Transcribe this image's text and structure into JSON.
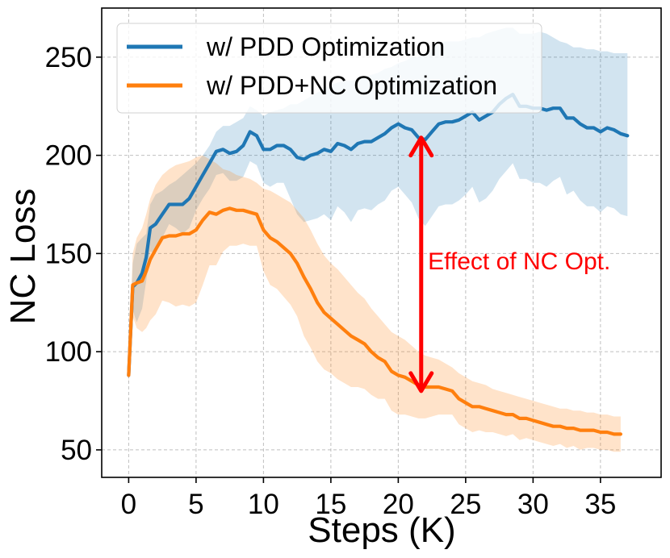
{
  "chart_data": {
    "type": "line",
    "xlabel": "Steps (K)",
    "ylabel": "NC Loss",
    "xlim": [
      -2,
      39.5
    ],
    "ylim": [
      36,
      275
    ],
    "xticks": [
      0,
      5,
      10,
      15,
      20,
      25,
      30,
      35
    ],
    "yticks": [
      50,
      100,
      150,
      200,
      250
    ],
    "xtick_labels": [
      "0",
      "5",
      "10",
      "15",
      "20",
      "25",
      "30",
      "35"
    ],
    "ytick_labels": [
      "50",
      "100",
      "150",
      "200",
      "250"
    ],
    "grid": true,
    "legend_position": "top-left",
    "series": [
      {
        "name": "w/ PDD Optimization",
        "color": "#1f77b4",
        "x": [
          0,
          0.3,
          0.6,
          1.0,
          1.3,
          1.6,
          2.0,
          2.5,
          3.0,
          3.5,
          4.0,
          4.5,
          5.0,
          5.5,
          6.0,
          6.5,
          7.0,
          7.5,
          8.0,
          8.5,
          9.0,
          9.5,
          10.0,
          10.5,
          11.0,
          11.5,
          12.0,
          12.5,
          13.0,
          13.5,
          14.0,
          14.5,
          15.0,
          15.5,
          16.0,
          16.5,
          17.0,
          17.5,
          18.0,
          18.5,
          19.0,
          19.5,
          20.0,
          20.5,
          21.0,
          21.5,
          22.0,
          22.5,
          23.0,
          23.5,
          24.0,
          24.5,
          25.0,
          25.5,
          26.0,
          26.5,
          27.0,
          27.5,
          28.0,
          28.5,
          29.0,
          29.5,
          30.0,
          30.5,
          31.0,
          31.5,
          32.0,
          32.5,
          33.0,
          33.5,
          34.0,
          34.5,
          35.0,
          35.5,
          36.0,
          36.5,
          37.0
        ],
        "y": [
          88,
          133,
          135,
          140,
          148,
          163,
          165,
          170,
          175,
          175,
          175,
          178,
          184,
          190,
          196,
          202,
          203,
          201,
          202,
          205,
          212,
          210,
          203,
          203,
          205,
          205,
          203,
          199,
          198,
          200,
          201,
          203,
          202,
          206,
          205,
          203,
          206,
          207,
          207,
          209,
          211,
          214,
          216,
          214,
          213,
          209,
          208,
          212,
          216,
          217,
          217,
          218,
          220,
          222,
          218,
          220,
          222,
          226,
          229,
          231,
          225,
          225,
          224,
          224,
          223,
          224,
          224,
          219,
          219,
          216,
          214,
          214,
          212,
          214,
          213,
          211,
          210
        ],
        "band_upper": [
          92,
          145,
          155,
          158,
          160,
          175,
          180,
          182,
          185,
          187,
          190,
          193,
          196,
          200,
          205,
          212,
          215,
          215,
          217,
          219,
          225,
          223,
          220,
          222,
          223,
          224,
          226,
          226,
          228,
          230,
          232,
          234,
          236,
          237,
          238,
          238,
          239,
          240,
          241,
          242,
          244,
          245,
          247,
          248,
          250,
          250,
          252,
          254,
          257,
          258,
          258,
          258,
          259,
          260,
          260,
          262,
          263,
          264,
          265,
          265,
          262,
          262,
          262,
          263,
          262,
          260,
          258,
          257,
          255,
          255,
          254,
          254,
          253,
          253,
          252,
          252,
          252
        ],
        "band_lower": [
          84,
          121,
          115,
          122,
          136,
          151,
          150,
          158,
          165,
          163,
          160,
          163,
          172,
          178,
          183,
          190,
          191,
          187,
          187,
          189,
          197,
          195,
          186,
          184,
          186,
          186,
          178,
          170,
          166,
          167,
          168,
          170,
          167,
          174,
          171,
          166,
          172,
          173,
          172,
          175,
          177,
          182,
          184,
          180,
          176,
          168,
          164,
          169,
          174,
          175,
          175,
          177,
          180,
          184,
          176,
          178,
          182,
          188,
          192,
          196,
          188,
          188,
          186,
          186,
          184,
          187,
          189,
          180,
          182,
          177,
          174,
          174,
          171,
          174,
          173,
          170,
          169
        ]
      },
      {
        "name": "w/ PDD+NC Optimization",
        "color": "#ff7f0e",
        "x": [
          0,
          0.3,
          0.6,
          1.0,
          1.3,
          1.6,
          2.0,
          2.5,
          3.0,
          3.5,
          4.0,
          4.5,
          5.0,
          5.5,
          6.0,
          6.5,
          7.0,
          7.5,
          8.0,
          8.5,
          9.0,
          9.5,
          10.0,
          10.5,
          11.0,
          11.5,
          12.0,
          12.5,
          13.0,
          13.5,
          14.0,
          14.5,
          15.0,
          15.5,
          16.0,
          16.5,
          17.0,
          17.5,
          18.0,
          18.5,
          19.0,
          19.5,
          20.0,
          20.5,
          21.0,
          21.5,
          22.0,
          22.5,
          23.0,
          23.5,
          24.0,
          24.5,
          25.0,
          25.5,
          26.0,
          26.5,
          27.0,
          27.5,
          28.0,
          28.5,
          29.0,
          29.5,
          30.0,
          30.5,
          31.0,
          31.5,
          32.0,
          32.5,
          33.0,
          33.5,
          34.0,
          34.5,
          35.0,
          35.5,
          36.0,
          36.5
        ],
        "y": [
          88,
          134,
          135,
          136,
          141,
          147,
          152,
          158,
          159,
          159,
          160,
          160,
          162,
          167,
          171,
          170,
          172,
          173,
          172,
          172,
          171,
          170,
          162,
          158,
          156,
          153,
          150,
          145,
          138,
          132,
          125,
          120,
          117,
          114,
          111,
          108,
          106,
          104,
          100,
          97,
          95,
          90,
          88,
          87,
          85,
          83,
          82,
          82,
          82,
          81,
          80,
          76,
          74,
          72,
          72,
          71,
          70,
          69,
          68,
          68,
          66,
          66,
          65,
          64,
          63,
          62,
          62,
          61,
          61,
          60,
          60,
          60,
          59,
          59,
          58,
          58
        ],
        "band_upper": [
          92,
          150,
          158,
          163,
          170,
          178,
          185,
          190,
          193,
          195,
          196,
          197,
          199,
          200,
          198,
          196,
          193,
          192,
          190,
          189,
          188,
          186,
          183,
          182,
          180,
          178,
          176,
          172,
          168,
          162,
          155,
          149,
          145,
          142,
          138,
          134,
          130,
          127,
          122,
          118,
          114,
          110,
          108,
          106,
          103,
          100,
          98,
          97,
          96,
          94,
          92,
          89,
          87,
          85,
          84,
          83,
          81,
          80,
          79,
          78,
          77,
          76,
          75,
          74,
          73,
          72,
          71,
          71,
          70,
          70,
          69,
          69,
          68,
          68,
          67,
          67
        ],
        "band_lower": [
          84,
          118,
          112,
          110,
          112,
          116,
          119,
          126,
          125,
          123,
          124,
          123,
          125,
          134,
          144,
          144,
          151,
          154,
          154,
          155,
          154,
          154,
          141,
          134,
          132,
          128,
          124,
          118,
          108,
          102,
          95,
          91,
          89,
          86,
          84,
          82,
          82,
          81,
          78,
          76,
          76,
          70,
          68,
          68,
          67,
          66,
          66,
          67,
          68,
          68,
          68,
          63,
          61,
          59,
          60,
          59,
          59,
          58,
          57,
          58,
          55,
          56,
          55,
          54,
          53,
          52,
          53,
          51,
          52,
          50,
          51,
          51,
          50,
          50,
          49,
          49
        ]
      }
    ],
    "annotation": {
      "text": "Effect of NC Opt.",
      "color": "#ff0000",
      "x": 21.7,
      "y_from": 209,
      "y_to": 80,
      "text_x": 22.2,
      "text_y": 142
    }
  }
}
